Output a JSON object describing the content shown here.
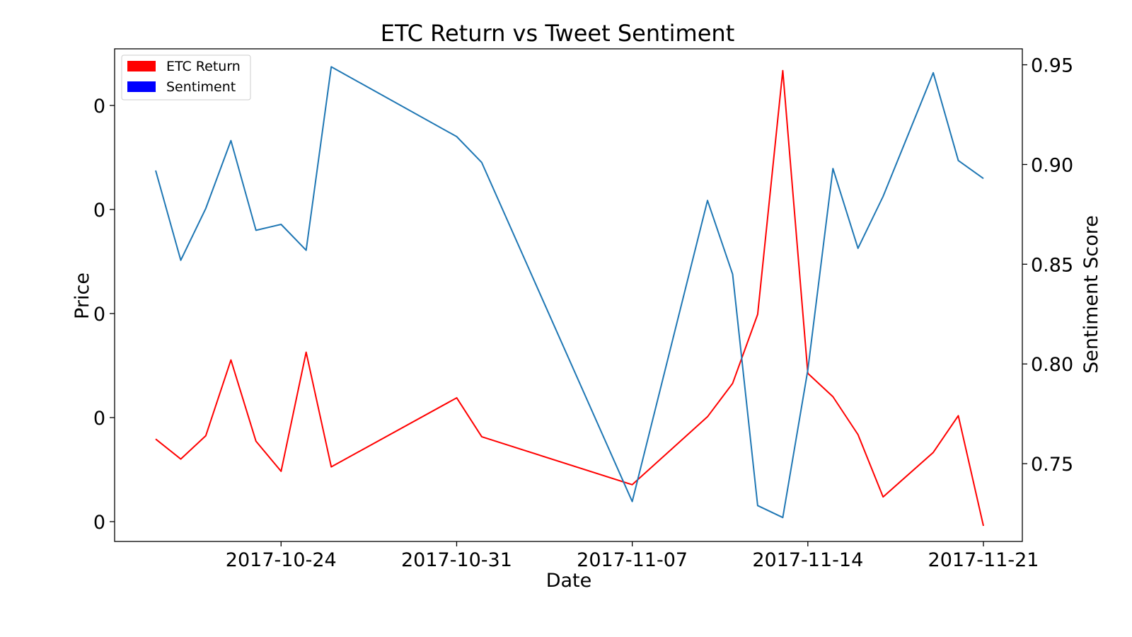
{
  "chart_data": {
    "type": "line",
    "title": "ETC Return vs Tweet Sentiment",
    "xlabel": "Date",
    "ylabel_left": "Price",
    "ylabel_right": "Sentiment Score",
    "x_tick_labels": [
      "2017-10-24",
      "2017-10-31",
      "2017-11-07",
      "2017-11-14",
      "2017-11-21"
    ],
    "left_tick_labels": [
      "0",
      "0",
      "0",
      "0",
      "0"
    ],
    "right_ylim": [
      0.711,
      0.958
    ],
    "right_tick_labels": [
      "0.75",
      "0.80",
      "0.85",
      "0.90",
      "0.95"
    ],
    "right_ticks": [
      0.75,
      0.8,
      0.85,
      0.9,
      0.95
    ],
    "grid": false,
    "legend_position": "top-left",
    "x": [
      "2017-10-19",
      "2017-10-20",
      "2017-10-21",
      "2017-10-22",
      "2017-10-23",
      "2017-10-24",
      "2017-10-25",
      "2017-10-26",
      "2017-10-31",
      "2017-11-01",
      "2017-11-07",
      "2017-11-10",
      "2017-11-11",
      "2017-11-12",
      "2017-11-13",
      "2017-11-14",
      "2017-11-15",
      "2017-11-16",
      "2017-11-17",
      "2017-11-19",
      "2017-11-20",
      "2017-11-21"
    ],
    "series": [
      {
        "name": "ETC Return",
        "axis": "left",
        "color": "#ff0000",
        "values": [
          0.092,
          0.074,
          0.095,
          0.163,
          0.09,
          0.063,
          0.17,
          0.067,
          0.129,
          0.094,
          0.051,
          0.112,
          0.142,
          0.204,
          0.423,
          0.151,
          0.13,
          0.096,
          0.04,
          0.08,
          0.113,
          0.014
        ]
      },
      {
        "name": "Sentiment",
        "axis": "right",
        "color": "#1f77b4",
        "legend_color": "#0000ff",
        "values": [
          0.897,
          0.852,
          0.878,
          0.912,
          0.867,
          0.87,
          0.857,
          0.949,
          0.914,
          0.901,
          0.731,
          0.882,
          0.845,
          0.729,
          0.723,
          0.797,
          0.898,
          0.858,
          0.884,
          0.946,
          0.902,
          0.893
        ]
      }
    ]
  }
}
